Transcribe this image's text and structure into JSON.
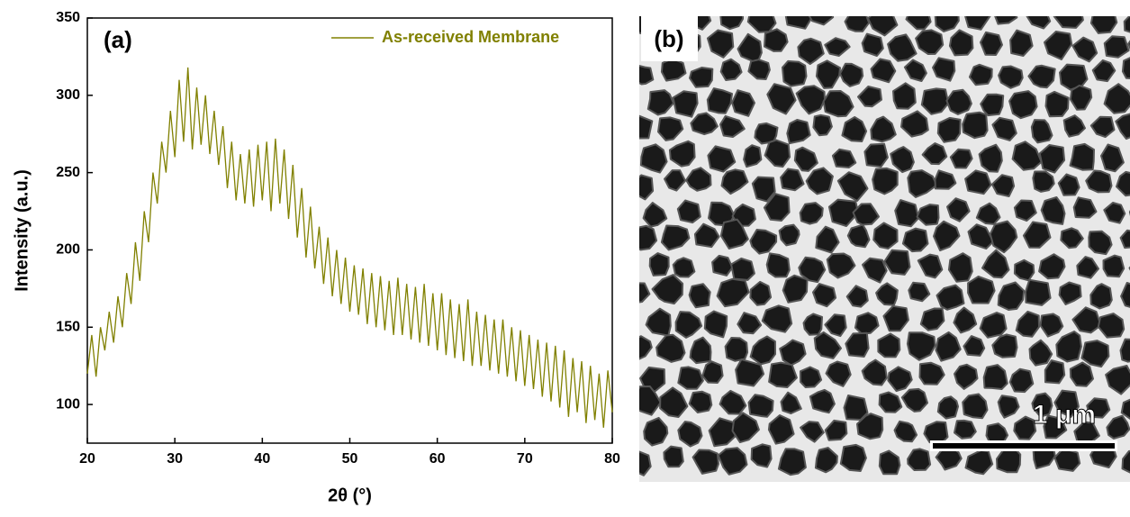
{
  "chart_data": {
    "type": "line",
    "panel_label": "(a)",
    "x_label": "2θ (°)",
    "y_label": "Intensity (a.u.)",
    "xlim": [
      20,
      80
    ],
    "ylim": [
      75,
      350
    ],
    "xticks": [
      20,
      30,
      40,
      50,
      60,
      70,
      80
    ],
    "yticks": [
      100,
      150,
      200,
      250,
      300,
      350
    ],
    "legend": "upper right",
    "x": [
      20,
      20.5,
      21,
      21.5,
      22,
      22.5,
      23,
      23.5,
      24,
      24.5,
      25,
      25.5,
      26,
      26.5,
      27,
      27.5,
      28,
      28.5,
      29,
      29.5,
      30,
      30.5,
      31,
      31.5,
      32,
      32.5,
      33,
      33.5,
      34,
      34.5,
      35,
      35.5,
      36,
      36.5,
      37,
      37.5,
      38,
      38.5,
      39,
      39.5,
      40,
      40.5,
      41,
      41.5,
      42,
      42.5,
      43,
      43.5,
      44,
      44.5,
      45,
      45.5,
      46,
      46.5,
      47,
      47.5,
      48,
      48.5,
      49,
      49.5,
      50,
      50.5,
      51,
      51.5,
      52,
      52.5,
      53,
      53.5,
      54,
      54.5,
      55,
      55.5,
      56,
      56.5,
      57,
      57.5,
      58,
      58.5,
      59,
      59.5,
      60,
      60.5,
      61,
      61.5,
      62,
      62.5,
      63,
      63.5,
      64,
      64.5,
      65,
      65.5,
      66,
      66.5,
      67,
      67.5,
      68,
      68.5,
      69,
      69.5,
      70,
      70.5,
      71,
      71.5,
      72,
      72.5,
      73,
      73.5,
      74,
      74.5,
      75,
      75.5,
      76,
      76.5,
      77,
      77.5,
      78,
      78.5,
      79,
      79.5,
      80
    ],
    "series": [
      {
        "name": "As-received Membrane",
        "color": "#808000",
        "values": [
          120,
          145,
          118,
          150,
          135,
          160,
          140,
          170,
          150,
          185,
          165,
          205,
          180,
          225,
          205,
          250,
          230,
          270,
          250,
          290,
          260,
          310,
          270,
          318,
          265,
          305,
          268,
          300,
          262,
          290,
          255,
          280,
          240,
          270,
          232,
          262,
          230,
          265,
          228,
          268,
          232,
          270,
          225,
          272,
          230,
          265,
          220,
          255,
          208,
          240,
          195,
          228,
          188,
          215,
          178,
          208,
          170,
          200,
          165,
          195,
          160,
          190,
          158,
          188,
          152,
          185,
          150,
          183,
          148,
          180,
          145,
          182,
          145,
          178,
          142,
          176,
          140,
          178,
          138,
          172,
          135,
          172,
          132,
          168,
          130,
          165,
          128,
          168,
          125,
          160,
          125,
          158,
          122,
          155,
          120,
          155,
          118,
          150,
          115,
          148,
          112,
          145,
          110,
          142,
          105,
          140,
          102,
          138,
          98,
          135,
          92,
          130,
          95,
          128,
          88,
          125,
          90,
          120,
          85,
          122,
          95
        ]
      }
    ]
  },
  "image": {
    "panel_label": "(b)",
    "scale_bar": "1 μm"
  }
}
